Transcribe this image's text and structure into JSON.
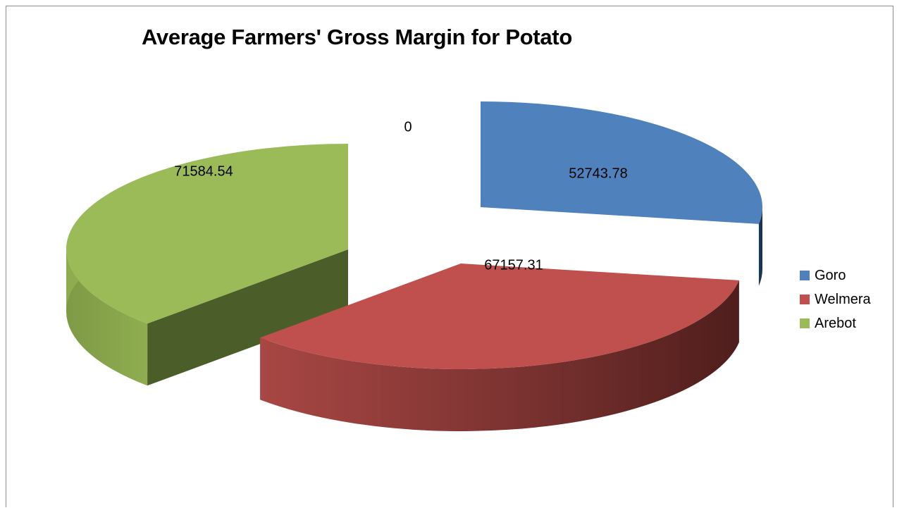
{
  "chart_data": {
    "type": "pie",
    "style": "3d-exploded",
    "title": "Average Farmers' Gross Margin for Potato",
    "legend_position": "right",
    "categories": [
      "",
      "Goro",
      "Welmera",
      "Arebot"
    ],
    "values": [
      0,
      52743.78,
      67157.31,
      71584.54
    ],
    "data_labels": [
      "0",
      "52743.78",
      "67157.31",
      "71584.54"
    ],
    "colors": [
      "#4f81bd",
      "#4f81bd",
      "#c0504d",
      "#9bbb59"
    ],
    "legend": [
      {
        "name": "Goro",
        "color": "#4f81bd"
      },
      {
        "name": "Welmera",
        "color": "#c0504d"
      },
      {
        "name": "Arebot",
        "color": "#9bbb59"
      }
    ]
  }
}
